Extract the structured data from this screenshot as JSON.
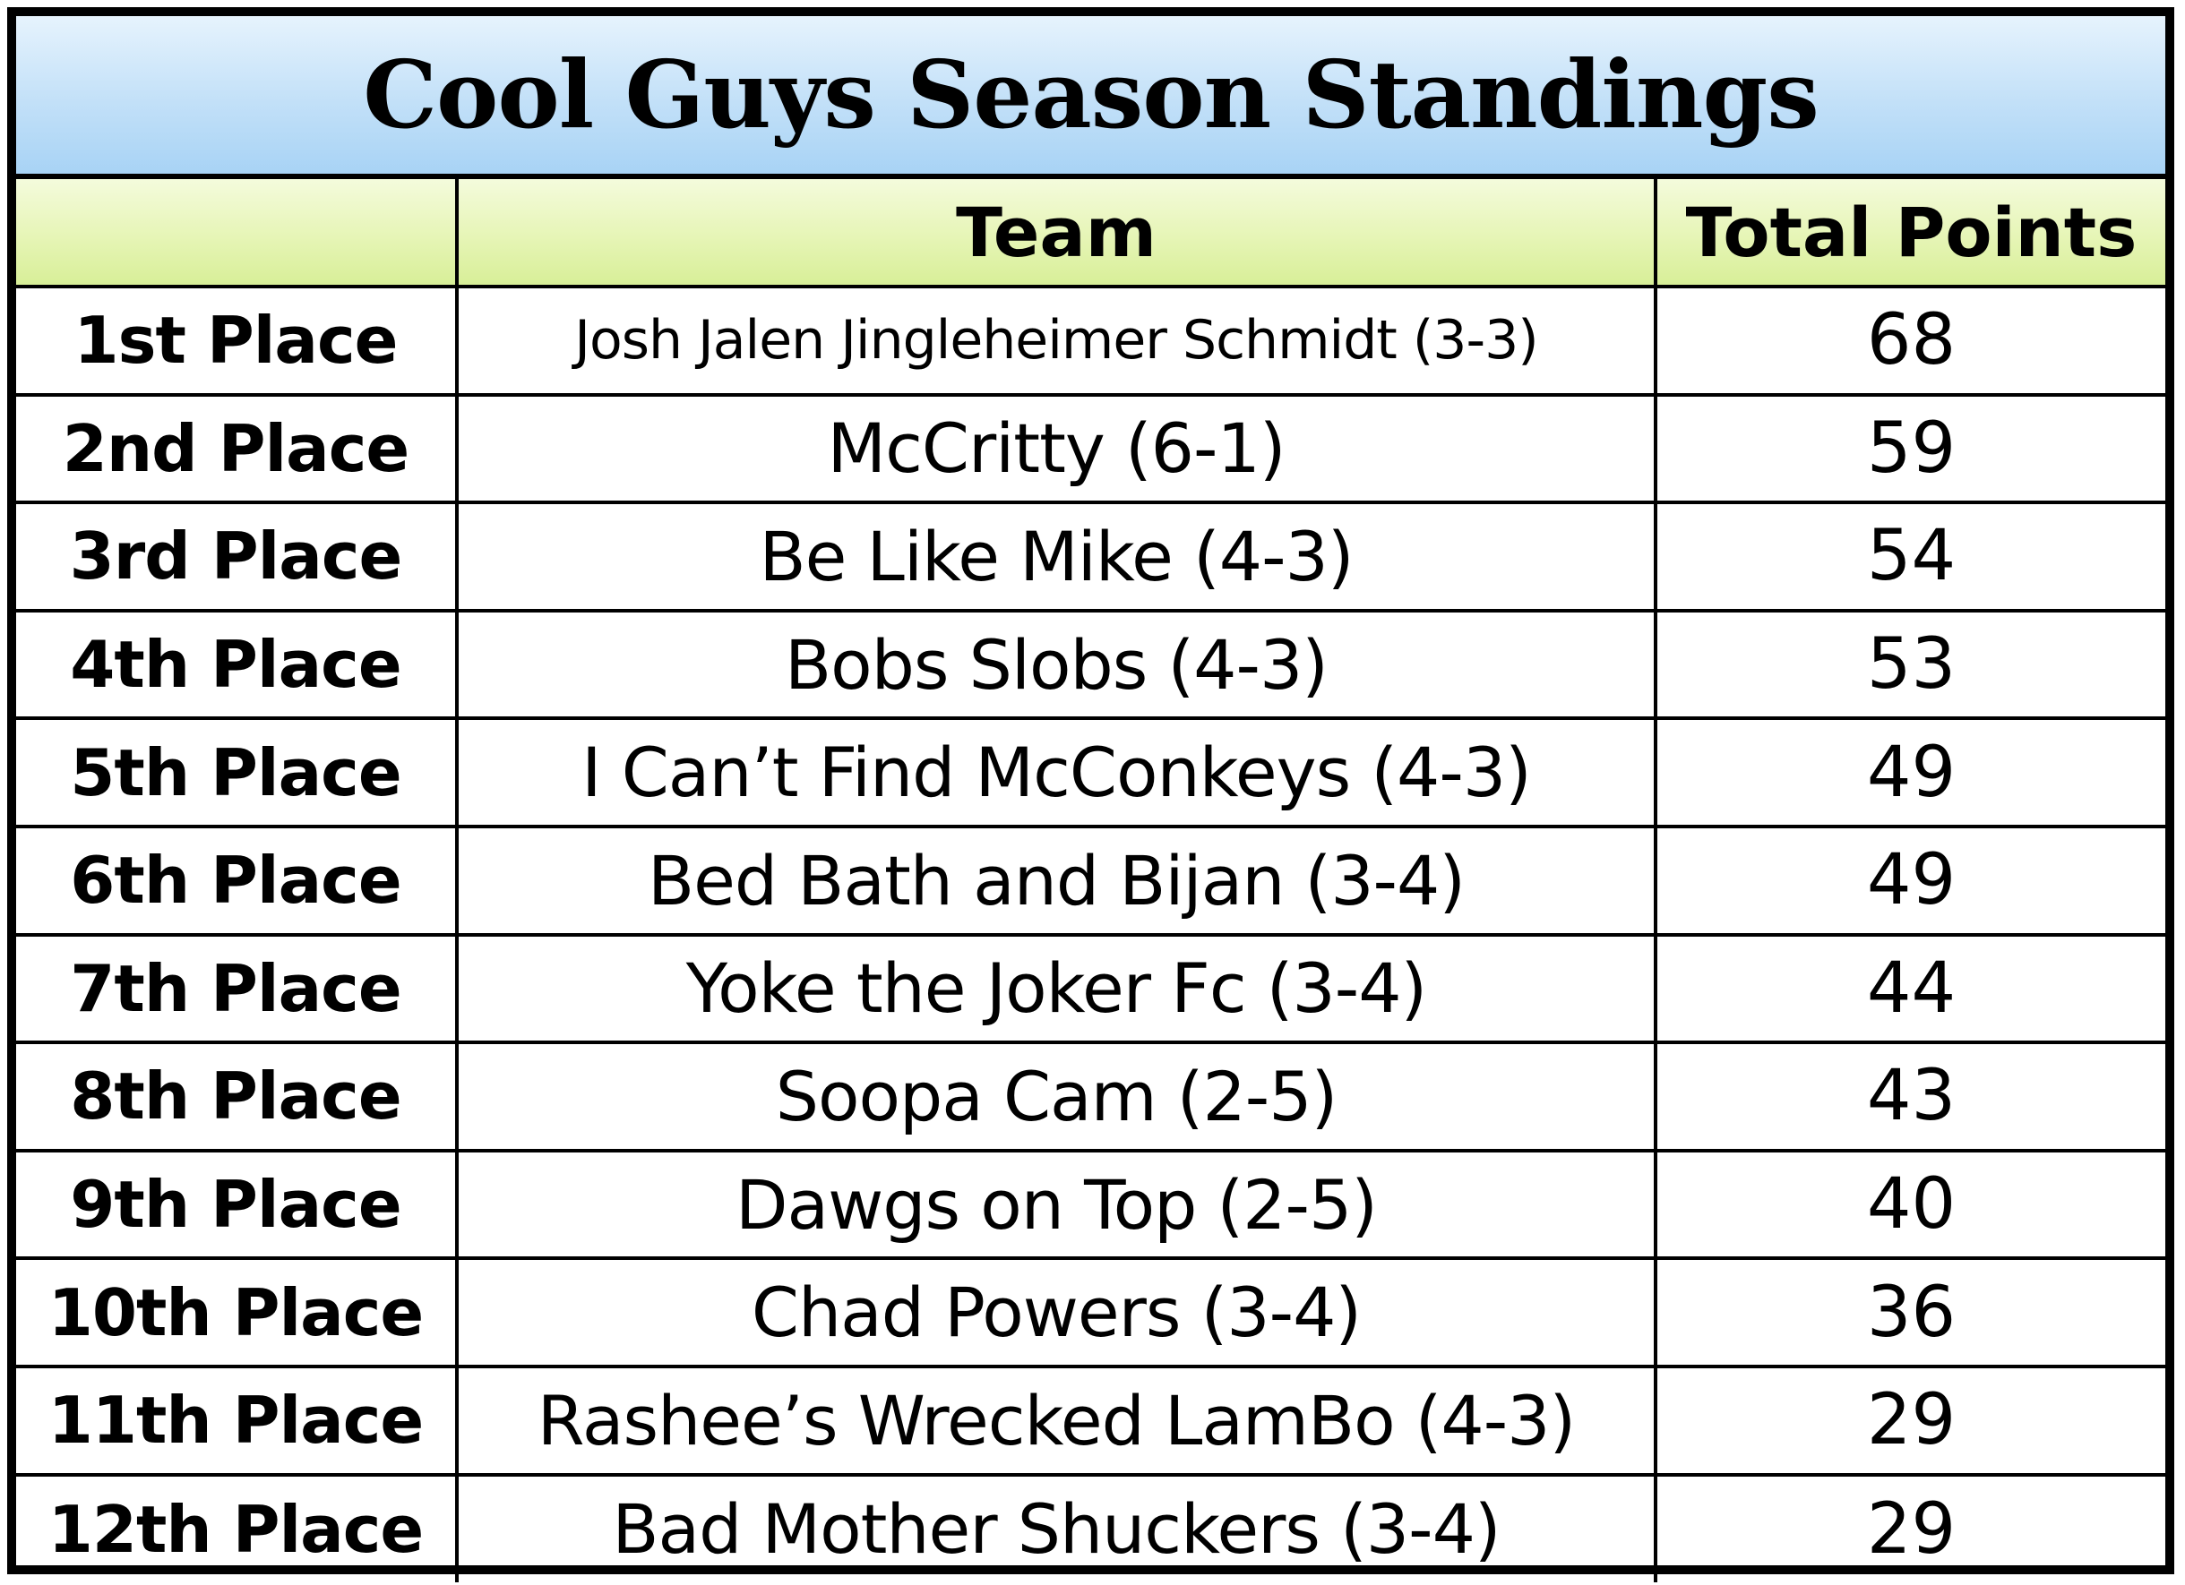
{
  "title": "Cool Guys Season Standings",
  "table": {
    "headers": [
      "",
      "Team",
      "Total Points"
    ],
    "rows": [
      {
        "place": "1st Place",
        "team": "Josh Jalen Jingleheimer Schmidt (3-3)",
        "points": "68"
      },
      {
        "place": "2nd Place",
        "team": "McCritty (6-1)",
        "points": "59"
      },
      {
        "place": "3rd Place",
        "team": "Be Like Mike (4-3)",
        "points": "54"
      },
      {
        "place": "4th Place",
        "team": "Bobs Slobs (4-3)",
        "points": "53"
      },
      {
        "place": "5th Place",
        "team": "I Can’t Find McConkeys (4-3)",
        "points": "49"
      },
      {
        "place": "6th Place",
        "team": "Bed Bath and Bijan (3-4)",
        "points": "49"
      },
      {
        "place": "7th Place",
        "team": "Yoke the Joker Fc (3-4)",
        "points": "44"
      },
      {
        "place": "8th Place",
        "team": "Soopa Cam (2-5)",
        "points": "43"
      },
      {
        "place": "9th Place",
        "team": "Dawgs on Top (2-5)",
        "points": "40"
      },
      {
        "place": "10th Place",
        "team": "Chad Powers (3-4)",
        "points": "36"
      },
      {
        "place": "11th Place",
        "team": "Rashee’s Wrecked LamBo (4-3)",
        "points": "29"
      },
      {
        "place": "12th Place",
        "team": "Bad Mother Shuckers (3-4)",
        "points": "29"
      }
    ]
  },
  "colors": {
    "title_bg": "#c2e0f8",
    "header_bg": "#e6f5b6",
    "border": "#000000"
  }
}
